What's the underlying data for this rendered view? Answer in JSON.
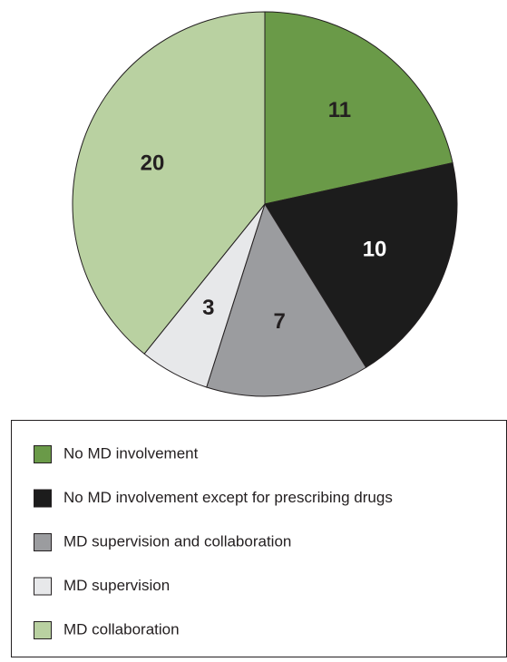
{
  "chart_data": {
    "type": "pie",
    "categories": [
      "No MD involvement",
      "No MD involvement except for prescribing drugs",
      "MD supervision and collaboration",
      "MD supervision",
      "MD collaboration"
    ],
    "values": [
      11,
      10,
      7,
      3,
      20
    ],
    "colors": [
      "#6a9a48",
      "#1c1c1c",
      "#9b9c9f",
      "#e7e8ea",
      "#b9d1a1"
    ],
    "start_angle": "top",
    "direction": "clockwise",
    "legend": "bottom"
  }
}
